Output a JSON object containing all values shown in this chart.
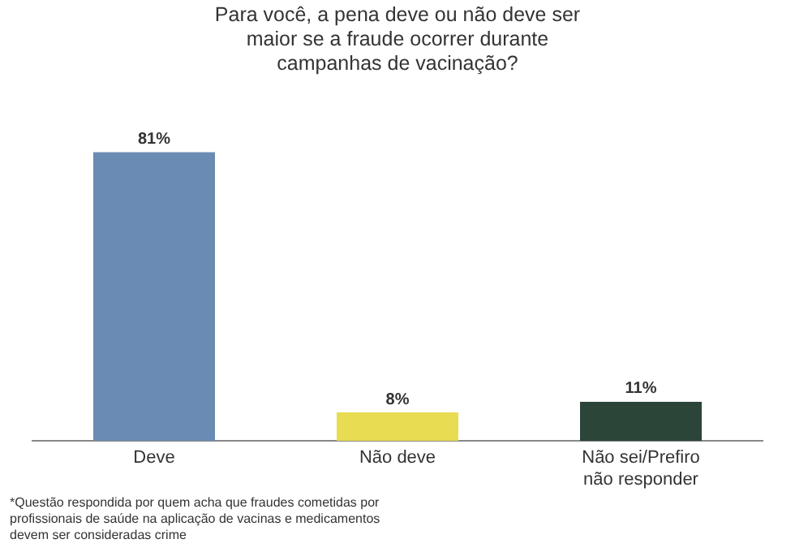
{
  "chart_data": {
    "type": "bar",
    "title": "Para você, a pena deve ou não deve ser maior se a fraude ocorrer durante campanhas de vacinação?",
    "categories": [
      "Deve",
      "Não deve",
      "Não sei/Prefiro não responder"
    ],
    "values": [
      81,
      8,
      11
    ],
    "colors": [
      "#6a8bb4",
      "#e8dc52",
      "#2b4539"
    ],
    "value_labels": [
      "81%",
      "8%",
      "11%"
    ],
    "legend": false,
    "grid": false,
    "annotations": [
      "*Questão respondida por quem acha que fraudes cometidas por profissionais de saúde na aplicação de vacinas e medicamentos devem ser consideradas crime"
    ]
  }
}
